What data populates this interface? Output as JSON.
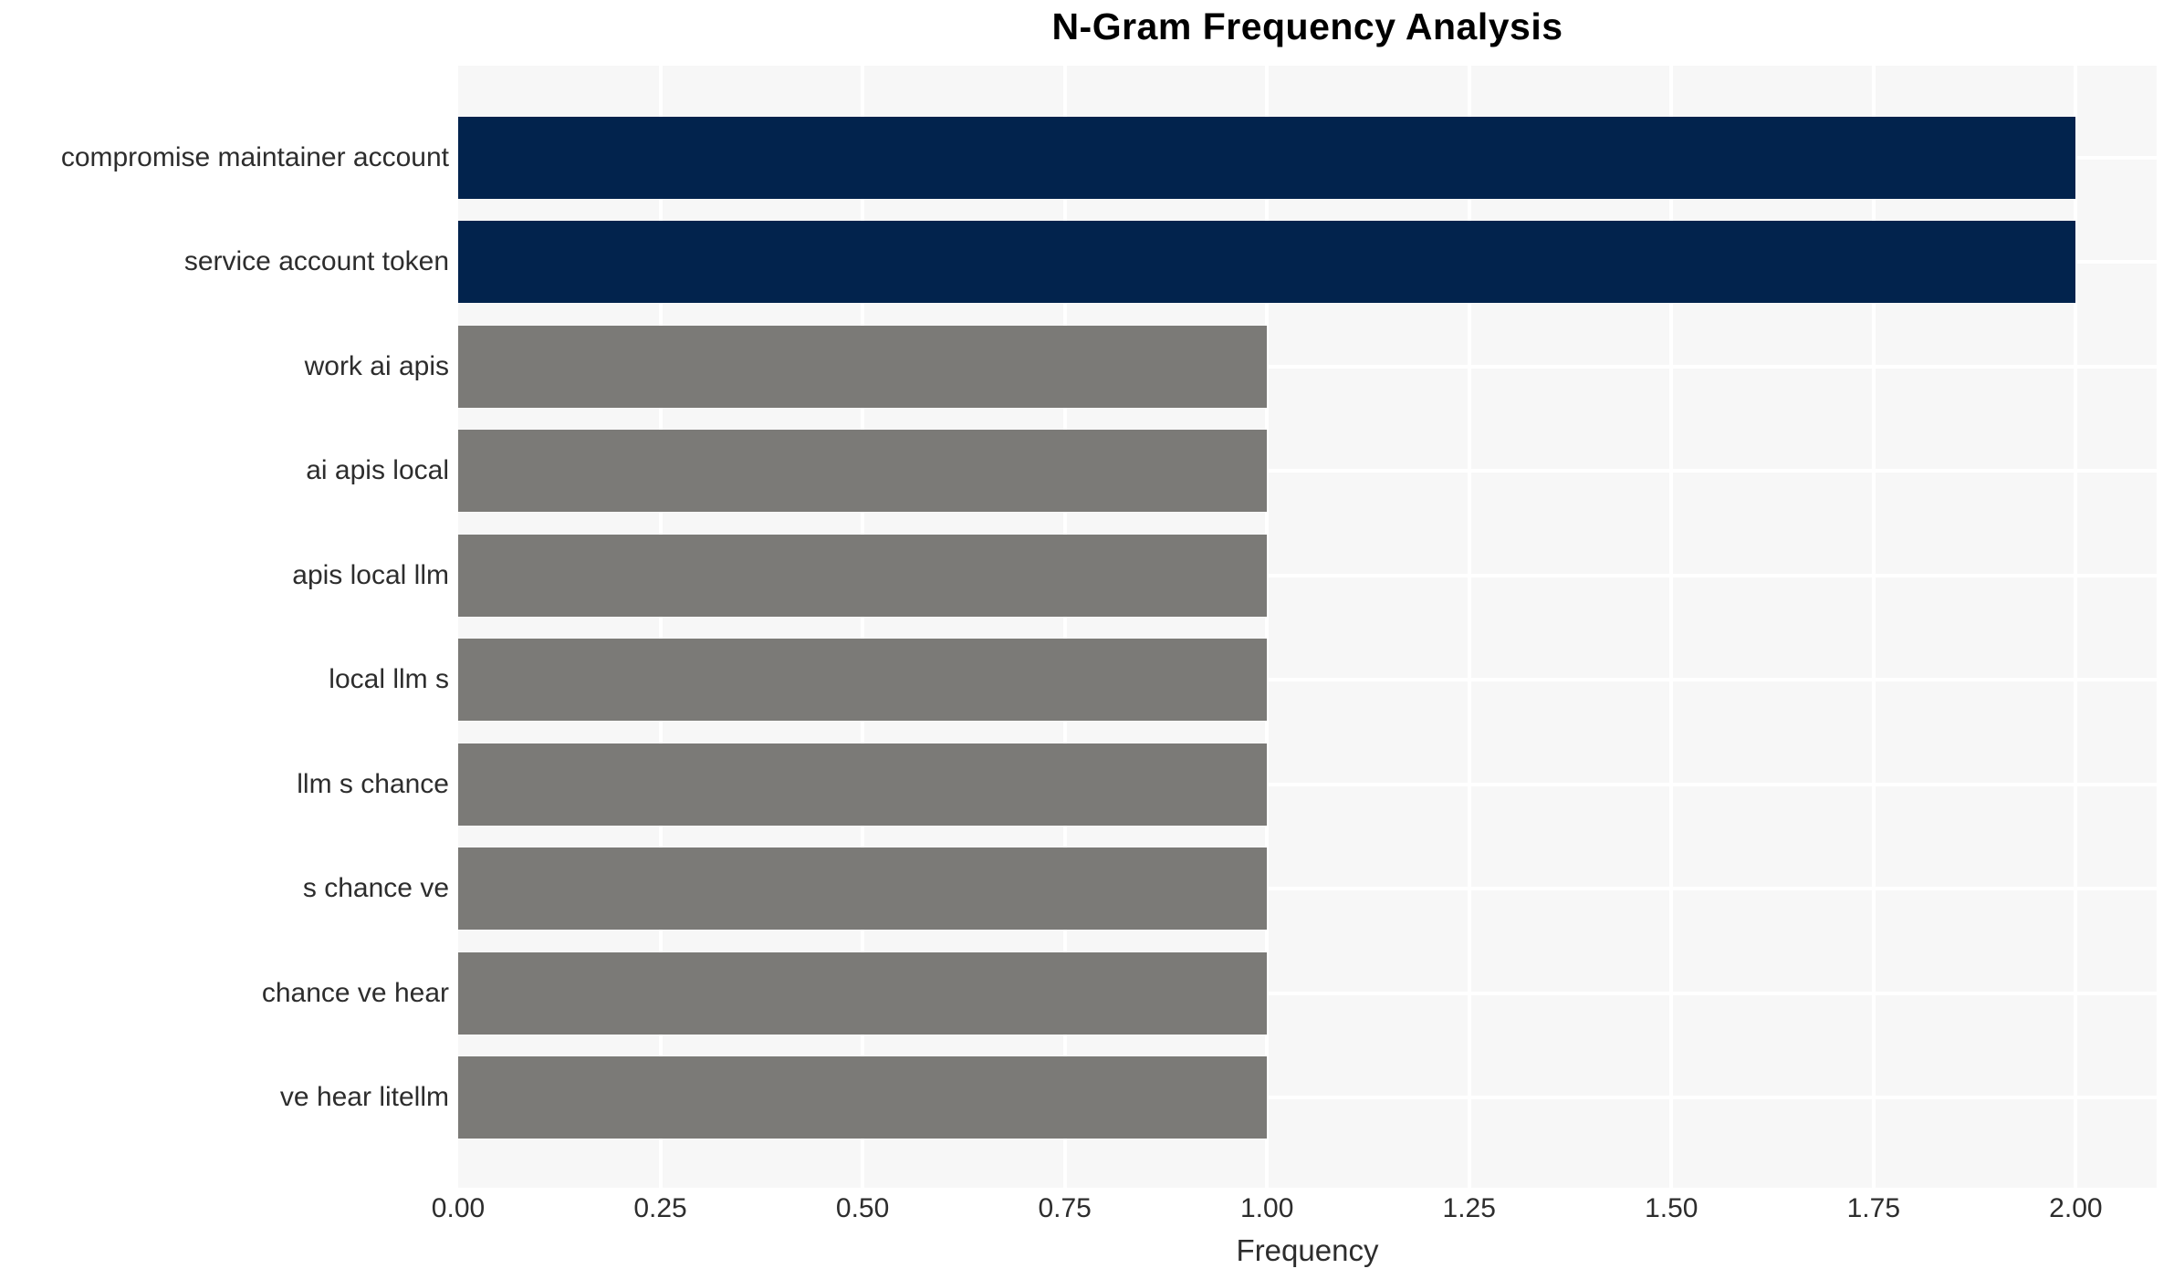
{
  "figure": {
    "background": "#ffffff",
    "panel_background": "#f7f7f7",
    "grid_color": "#ffffff",
    "text_color": "#2d2d2d",
    "title_color": "#000000"
  },
  "chart_data": {
    "type": "bar",
    "orientation": "horizontal",
    "title": "N-Gram Frequency Analysis",
    "xlabel": "Frequency",
    "ylabel": "",
    "legend": "none",
    "grid": "white major gridlines on light gray panel",
    "categories": [
      "compromise maintainer account",
      "service account token",
      "work ai apis",
      "ai apis local",
      "apis local llm",
      "local llm s",
      "llm s chance",
      "s chance ve",
      "chance ve hear",
      "ve hear litellm"
    ],
    "values": [
      2,
      2,
      1,
      1,
      1,
      1,
      1,
      1,
      1,
      1
    ],
    "bar_colors": [
      "#02234d",
      "#02234d",
      "#7b7a77",
      "#7b7a77",
      "#7b7a77",
      "#7b7a77",
      "#7b7a77",
      "#7b7a77",
      "#7b7a77",
      "#7b7a77"
    ],
    "xlim": [
      0,
      2.1
    ],
    "xticks": [
      0,
      0.25,
      0.5,
      0.75,
      1.0,
      1.25,
      1.5,
      1.75,
      2.0
    ],
    "xtick_labels": [
      "0.00",
      "0.25",
      "0.50",
      "0.75",
      "1.00",
      "1.25",
      "1.50",
      "1.75",
      "2.00"
    ]
  }
}
